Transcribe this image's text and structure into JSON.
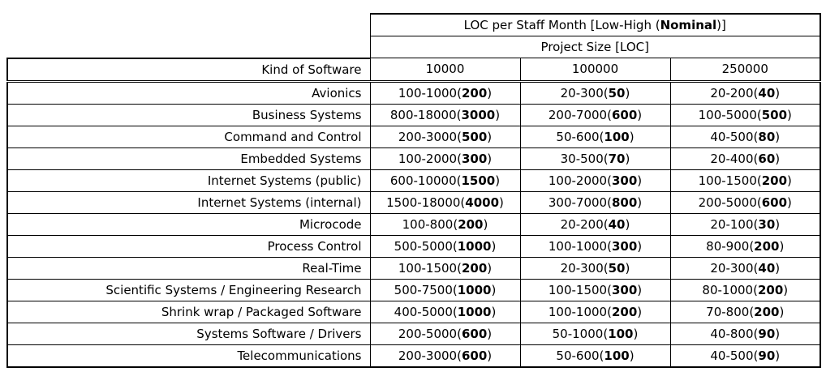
{
  "table": {
    "title": {
      "prefix": "LOC per Staff Month [Low-High (",
      "bold": "Nominal",
      "suffix": ")]"
    },
    "subtitle": "Project Size [LOC]",
    "col_header": "Kind of Software",
    "size_headers": [
      "10000",
      "100000",
      "250000"
    ],
    "punctuation": {
      "open": "(",
      "close": ")"
    },
    "rows": [
      {
        "software": "Avionics",
        "values": [
          {
            "range": "100-1000",
            "nominal": "200"
          },
          {
            "range": "20-300",
            "nominal": "50"
          },
          {
            "range": "20-200",
            "nominal": "40"
          }
        ]
      },
      {
        "software": "Business Systems",
        "values": [
          {
            "range": "800-18000",
            "nominal": "3000"
          },
          {
            "range": "200-7000",
            "nominal": "600"
          },
          {
            "range": "100-5000",
            "nominal": "500"
          }
        ]
      },
      {
        "software": "Command and Control",
        "values": [
          {
            "range": "200-3000",
            "nominal": "500"
          },
          {
            "range": "50-600",
            "nominal": "100"
          },
          {
            "range": "40-500",
            "nominal": "80"
          }
        ]
      },
      {
        "software": "Embedded Systems",
        "values": [
          {
            "range": "100-2000",
            "nominal": "300"
          },
          {
            "range": "30-500",
            "nominal": "70"
          },
          {
            "range": "20-400",
            "nominal": "60"
          }
        ]
      },
      {
        "software": "Internet Systems (public)",
        "values": [
          {
            "range": "600-10000",
            "nominal": "1500"
          },
          {
            "range": "100-2000",
            "nominal": "300"
          },
          {
            "range": "100-1500",
            "nominal": "200"
          }
        ]
      },
      {
        "software": "Internet Systems (internal)",
        "values": [
          {
            "range": "1500-18000",
            "nominal": "4000"
          },
          {
            "range": "300-7000",
            "nominal": "800"
          },
          {
            "range": "200-5000",
            "nominal": "600"
          }
        ]
      },
      {
        "software": "Microcode",
        "values": [
          {
            "range": "100-800",
            "nominal": "200"
          },
          {
            "range": "20-200",
            "nominal": "40"
          },
          {
            "range": "20-100",
            "nominal": "30"
          }
        ]
      },
      {
        "software": "Process Control",
        "values": [
          {
            "range": "500-5000",
            "nominal": "1000"
          },
          {
            "range": "100-1000",
            "nominal": "300"
          },
          {
            "range": "80-900",
            "nominal": "200"
          }
        ]
      },
      {
        "software": "Real-Time",
        "values": [
          {
            "range": "100-1500",
            "nominal": "200"
          },
          {
            "range": "20-300",
            "nominal": "50"
          },
          {
            "range": "20-300",
            "nominal": "40"
          }
        ]
      },
      {
        "software": "Scientific Systems / Engineering Research",
        "values": [
          {
            "range": "500-7500",
            "nominal": "1000"
          },
          {
            "range": "100-1500",
            "nominal": "300"
          },
          {
            "range": "80-1000",
            "nominal": "200"
          }
        ]
      },
      {
        "software": "Shrink wrap / Packaged Software",
        "values": [
          {
            "range": "400-5000",
            "nominal": "1000"
          },
          {
            "range": "100-1000",
            "nominal": "200"
          },
          {
            "range": "70-800",
            "nominal": "200"
          }
        ]
      },
      {
        "software": "Systems Software / Drivers",
        "values": [
          {
            "range": "200-5000",
            "nominal": "600"
          },
          {
            "range": "50-1000",
            "nominal": "100"
          },
          {
            "range": "40-800",
            "nominal": "90"
          }
        ]
      },
      {
        "software": "Telecommunications",
        "values": [
          {
            "range": "200-3000",
            "nominal": "600"
          },
          {
            "range": "50-600",
            "nominal": "100"
          },
          {
            "range": "40-500",
            "nominal": "90"
          }
        ]
      }
    ]
  }
}
